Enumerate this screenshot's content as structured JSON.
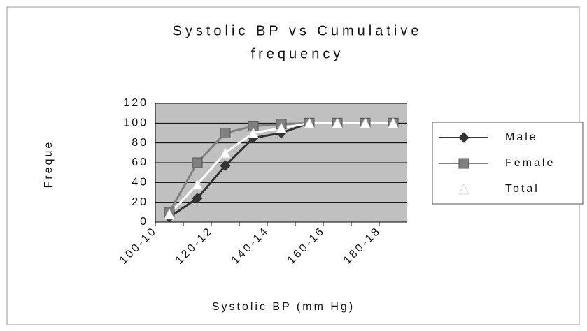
{
  "chart_data": {
    "type": "line",
    "title": [
      "Systolic BP vs Cumulative",
      "frequency"
    ],
    "x_label": "Systolic BP (mm Hg)",
    "y_label": "Freque",
    "categories": [
      "100-10",
      null,
      "120-12",
      null,
      "140-14",
      null,
      "160-16",
      null,
      "180-18"
    ],
    "series": [
      {
        "name": "Male",
        "color": "#333333",
        "marker": "diamond",
        "values": [
          5,
          24,
          57,
          85,
          90,
          100,
          100,
          100,
          100
        ]
      },
      {
        "name": "Female",
        "color": "#808080",
        "marker": "square",
        "values": [
          10,
          60,
          90,
          97,
          99,
          100,
          100,
          100,
          100
        ]
      },
      {
        "name": "Total",
        "color": "#ffffff",
        "marker": "triangle",
        "values": [
          8,
          38,
          70,
          90,
          95,
          100,
          100,
          100,
          100
        ]
      }
    ],
    "ylim": [
      0,
      120
    ],
    "yticks": [
      0,
      20,
      40,
      60,
      80,
      100,
      120
    ],
    "grid": true,
    "legend": "right"
  }
}
